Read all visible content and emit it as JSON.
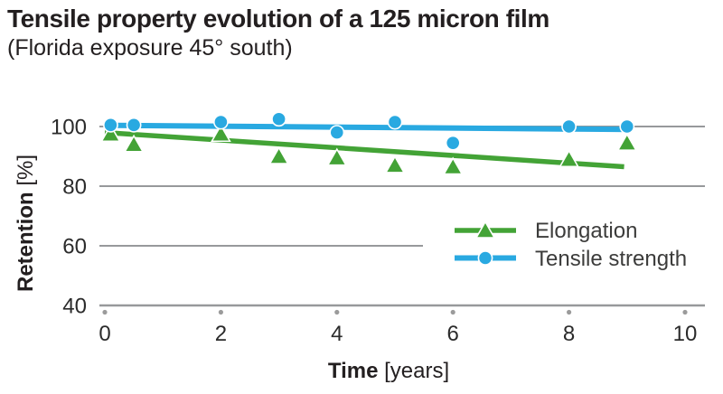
{
  "header": {
    "title": "Tensile property evolution of a 125 micron film",
    "subtitle": "(Florida exposure 45° south)"
  },
  "chart_data": {
    "type": "scatter",
    "title": "Tensile property evolution of a 125 micron film",
    "subtitle": "(Florida exposure 45° south)",
    "xlabel": "Time [years]",
    "ylabel": "Retention [%]",
    "xlabel_parts": {
      "bold": "Time",
      "unit": "[years]"
    },
    "ylabel_parts": {
      "bold": "Retention",
      "unit": "[%]"
    },
    "x_ticks": [
      0,
      2,
      4,
      6,
      8,
      10
    ],
    "y_ticks": [
      100,
      80,
      60,
      40
    ],
    "xlim": [
      0,
      10.3
    ],
    "ylim": [
      40,
      105
    ],
    "grid": "horizontal",
    "legend_position": "inside-right",
    "series": [
      {
        "name": "Elongation",
        "marker": "triangle",
        "color": "#43A336",
        "x": [
          0.1,
          0.5,
          2,
          3,
          4,
          5,
          6,
          8,
          9
        ],
        "y": [
          97.5,
          94,
          97.5,
          90,
          89.5,
          87,
          86.5,
          89,
          94.5
        ],
        "trend": {
          "x": [
            0,
            8.95
          ],
          "y": [
            98,
            86.5
          ]
        }
      },
      {
        "name": "Tensile strength",
        "marker": "circle",
        "color": "#29A9E1",
        "x": [
          0.1,
          0.5,
          2,
          3,
          4,
          5,
          6,
          8,
          9
        ],
        "y": [
          100.5,
          100.5,
          101.5,
          102.5,
          98,
          101.5,
          94.5,
          100,
          100
        ],
        "trend": {
          "x": [
            0,
            9.05
          ],
          "y": [
            100.4,
            99
          ]
        }
      }
    ],
    "colors": {
      "text": "#231F20",
      "tick_text": "#2B2B2B",
      "legend_text": "#3C3C3B",
      "grid": "#97999B",
      "tick_dot": "#9B9B9B",
      "marker_outline": "#FFFFFF"
    }
  }
}
